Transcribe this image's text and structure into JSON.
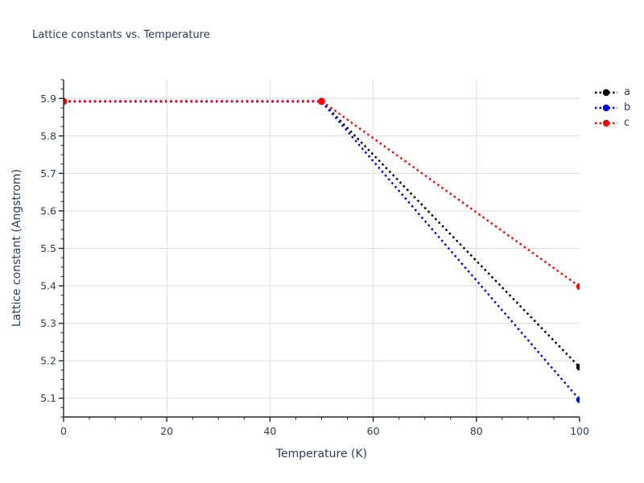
{
  "title": "Lattice constants vs. Temperature",
  "colors": {
    "text": "#2a3f5f",
    "axis": "#262626",
    "grid": "#dcdcdc",
    "background": "#ffffff"
  },
  "chart_data": {
    "type": "line",
    "title": "Lattice constants vs. Temperature",
    "xlabel": "Temperature (K)",
    "ylabel": "Lattice constant (Angstrom)",
    "xlim": [
      0,
      100
    ],
    "ylim": [
      5.05,
      5.95
    ],
    "xticks": [
      0,
      20,
      40,
      60,
      80,
      100
    ],
    "yticks": [
      5.1,
      5.2,
      5.3,
      5.4,
      5.5,
      5.6,
      5.7,
      5.8,
      5.9
    ],
    "x_minor_step": 5,
    "y_minor_step": 0.025,
    "grid": true,
    "line_style": "dotted",
    "marker": "circle",
    "legend_position": "outside-right",
    "x": [
      0,
      50,
      100
    ],
    "series": [
      {
        "name": "a",
        "color": "#000000",
        "values": [
          5.892,
          5.892,
          5.183
        ]
      },
      {
        "name": "b",
        "color": "#0000ff",
        "values": [
          5.892,
          5.892,
          5.096
        ]
      },
      {
        "name": "c",
        "color": "#ff0000",
        "values": [
          5.893,
          5.893,
          5.398
        ]
      }
    ]
  }
}
